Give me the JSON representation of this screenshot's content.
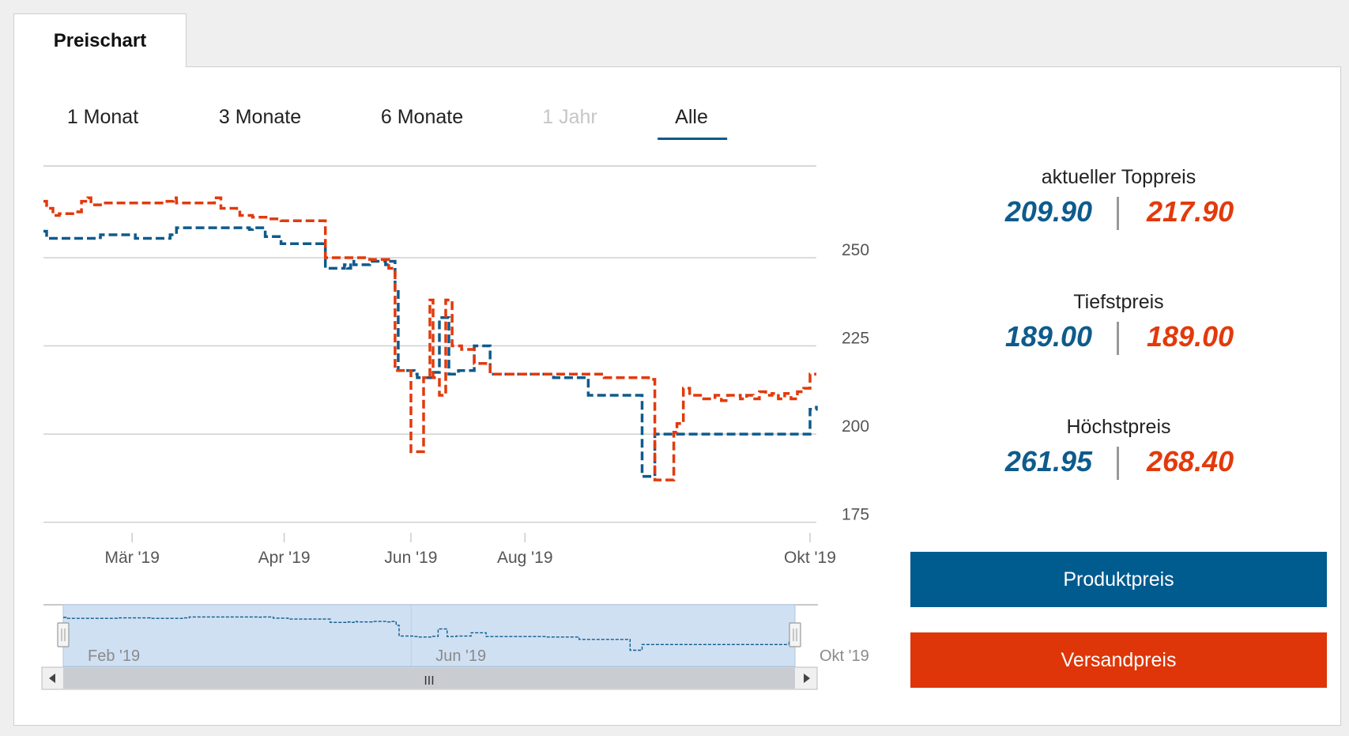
{
  "tab": {
    "label": "Preischart"
  },
  "ranges": [
    {
      "label": "1 Monat",
      "disabled": false,
      "active": false
    },
    {
      "label": "3 Monate",
      "disabled": false,
      "active": false
    },
    {
      "label": "6 Monate",
      "disabled": false,
      "active": false
    },
    {
      "label": "1 Jahr",
      "disabled": true,
      "active": false
    },
    {
      "label": "Alle",
      "disabled": false,
      "active": true
    }
  ],
  "stats": {
    "toppreis": {
      "label": "aktueller Toppreis",
      "produkt": "209.90",
      "versand": "217.90"
    },
    "tiefst": {
      "label": "Tiefstpreis",
      "produkt": "189.00",
      "versand": "189.00"
    },
    "hoechst": {
      "label": "Höchstpreis",
      "produkt": "261.95",
      "versand": "268.40"
    }
  },
  "buttons": {
    "produkt": "Produktpreis",
    "versand": "Versandpreis"
  },
  "colors": {
    "produkt": "#0e5b8c",
    "versand": "#e23a0c",
    "accent": "#005b8f",
    "versand_button": "#de3608"
  },
  "chart_data": {
    "type": "line",
    "step": true,
    "dashed": true,
    "y_ticks": [
      175,
      200,
      225,
      250
    ],
    "ylim": [
      172,
      276
    ],
    "x_ticks": [
      "Mär '19",
      "Apr '19",
      "Jun '19",
      "Aug '19",
      "Okt '19"
    ],
    "xlim": [
      "2019-02-01",
      "2019-10-03"
    ],
    "x_tick_dates": [
      "2019-03-01",
      "2019-04-18",
      "2019-05-28",
      "2019-07-03",
      "2019-10-01"
    ],
    "navigator": {
      "labels": [
        "Feb '19",
        "Jun '19",
        "Okt '19"
      ],
      "label_dates": [
        "2019-02-01",
        "2019-05-28",
        "2019-10-03"
      ],
      "scroll_handle": "III"
    },
    "series": [
      {
        "name": "Produktpreis",
        "color": "#0e5b8c",
        "x": [
          "2019-02-01",
          "2019-02-02",
          "2019-02-15",
          "2019-02-16",
          "2019-02-18",
          "2019-02-19",
          "2019-03-01",
          "2019-03-02",
          "2019-03-12",
          "2019-03-13",
          "2019-03-14",
          "2019-03-15",
          "2019-03-27",
          "2019-03-29",
          "2019-04-03",
          "2019-04-05",
          "2019-04-07",
          "2019-04-08",
          "2019-04-12",
          "2019-04-13",
          "2019-04-17",
          "2019-04-30",
          "2019-05-01",
          "2019-05-07",
          "2019-05-08",
          "2019-05-09",
          "2019-05-10",
          "2019-05-15",
          "2019-05-19",
          "2019-05-20",
          "2019-05-21",
          "2019-05-23",
          "2019-05-24",
          "2019-05-28",
          "2019-05-29",
          "2019-05-30",
          "2019-06-03",
          "2019-06-04",
          "2019-06-06",
          "2019-06-09",
          "2019-06-10",
          "2019-06-12",
          "2019-06-17",
          "2019-06-22",
          "2019-07-09",
          "2019-07-12",
          "2019-07-18",
          "2019-07-23",
          "2019-07-28",
          "2019-08-02",
          "2019-08-09",
          "2019-08-12",
          "2019-08-13",
          "2019-09-30",
          "2019-10-01",
          "2019-10-03"
        ],
        "y": [
          257.5,
          255.5,
          255.5,
          255.5,
          255.7,
          256.5,
          256.5,
          255.5,
          255.5,
          256.5,
          256.5,
          258.5,
          258.5,
          258.5,
          258.5,
          258.5,
          258,
          258.5,
          256,
          256,
          254,
          254,
          247,
          248,
          247,
          249,
          248,
          249,
          249,
          248,
          249,
          241,
          218,
          218,
          217,
          216,
          216,
          217.5,
          233,
          217,
          217,
          218,
          225,
          217,
          217,
          216,
          216,
          211,
          211,
          211,
          188,
          188,
          200,
          200,
          207,
          208
        ]
      },
      {
        "name": "Versandpreis",
        "color": "#e23a0c",
        "x": [
          "2019-02-01",
          "2019-02-02",
          "2019-02-04",
          "2019-02-06",
          "2019-02-11",
          "2019-02-13",
          "2019-02-15",
          "2019-02-16",
          "2019-02-18",
          "2019-02-20",
          "2019-03-01",
          "2019-03-02",
          "2019-03-12",
          "2019-03-13",
          "2019-03-14",
          "2019-03-15",
          "2019-03-20",
          "2019-03-27",
          "2019-03-29",
          "2019-03-31",
          "2019-04-03",
          "2019-04-04",
          "2019-04-07",
          "2019-04-08",
          "2019-04-13",
          "2019-04-17",
          "2019-04-30",
          "2019-05-01",
          "2019-05-15",
          "2019-05-21",
          "2019-05-23",
          "2019-05-24",
          "2019-05-28",
          "2019-06-01",
          "2019-06-03",
          "2019-06-04",
          "2019-06-06",
          "2019-06-08",
          "2019-06-10",
          "2019-06-12",
          "2019-06-13",
          "2019-06-17",
          "2019-06-22",
          "2019-07-28",
          "2019-08-11",
          "2019-08-13",
          "2019-08-18",
          "2019-08-19",
          "2019-08-20",
          "2019-08-22",
          "2019-08-24",
          "2019-08-26",
          "2019-08-28",
          "2019-08-30",
          "2019-09-01",
          "2019-09-03",
          "2019-09-05",
          "2019-09-07",
          "2019-09-09",
          "2019-09-11",
          "2019-09-13",
          "2019-09-15",
          "2019-09-17",
          "2019-09-19",
          "2019-09-21",
          "2019-09-23",
          "2019-09-25",
          "2019-09-27",
          "2019-09-29",
          "2019-10-01",
          "2019-10-03"
        ],
        "y": [
          266,
          264,
          262,
          262.5,
          263,
          266,
          267,
          265,
          265,
          265.5,
          265.5,
          265.5,
          266,
          266,
          267,
          265.5,
          265.5,
          267,
          264,
          264,
          263.5,
          262,
          262,
          261.5,
          261,
          260.5,
          260.5,
          250,
          249.5,
          247,
          218,
          218,
          195,
          216,
          238,
          216,
          211,
          238,
          225,
          225,
          224,
          220,
          217,
          216,
          215.5,
          187,
          187,
          200.5,
          203,
          213,
          211,
          211,
          210,
          210,
          211,
          209.5,
          211,
          211,
          210,
          211,
          210,
          212,
          211,
          211.5,
          210,
          211.5,
          210,
          212,
          213,
          217,
          217
        ]
      }
    ]
  }
}
